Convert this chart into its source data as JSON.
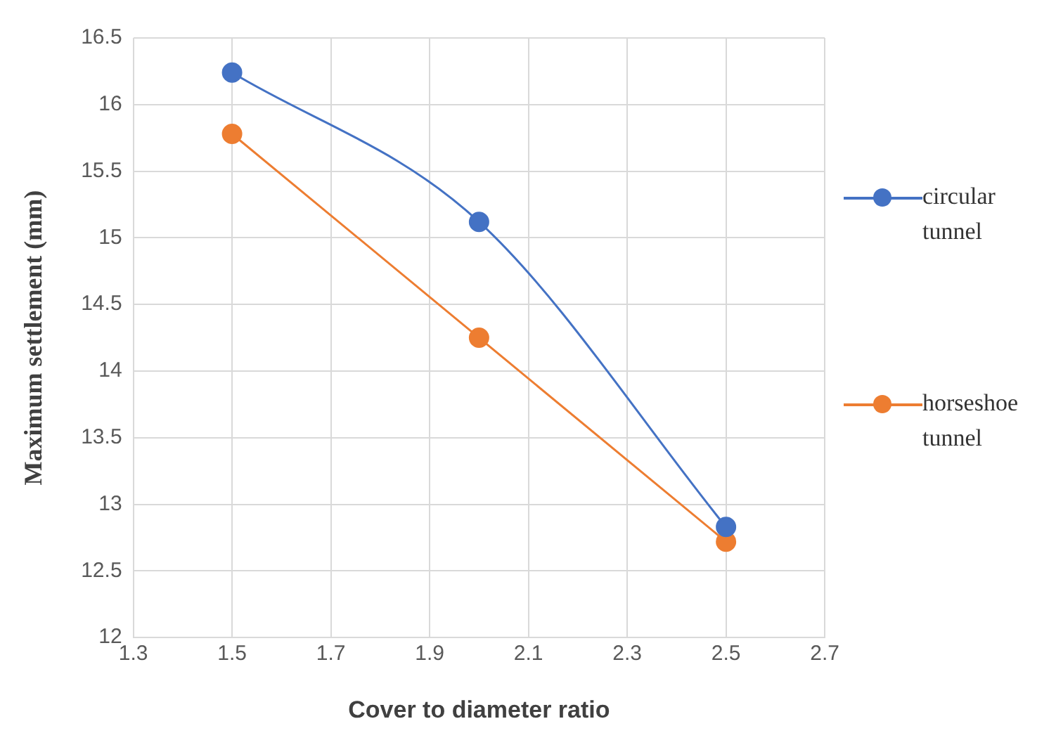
{
  "chart_data": {
    "type": "line",
    "xlabel": "Cover to diameter ratio",
    "ylabel": "Maximum settlement (mm)",
    "x": [
      1.5,
      2.0,
      2.5
    ],
    "series": [
      {
        "name": "circular tunnel",
        "color": "#4472c4",
        "values": [
          16.24,
          15.12,
          12.83
        ]
      },
      {
        "name": "horseshoe tunnel",
        "color": "#ed7d31",
        "values": [
          15.78,
          14.25,
          12.72
        ]
      }
    ],
    "xlim": [
      1.3,
      2.7
    ],
    "xticks": [
      1.3,
      1.5,
      1.7,
      1.9,
      2.1,
      2.3,
      2.5,
      2.7
    ],
    "ylim": [
      12,
      16.5
    ],
    "yticks": [
      12,
      12.5,
      13,
      13.5,
      14,
      14.5,
      15,
      15.5,
      16,
      16.5
    ],
    "grid": true,
    "legend": "right",
    "marker": "circle",
    "line_style": "solid"
  }
}
